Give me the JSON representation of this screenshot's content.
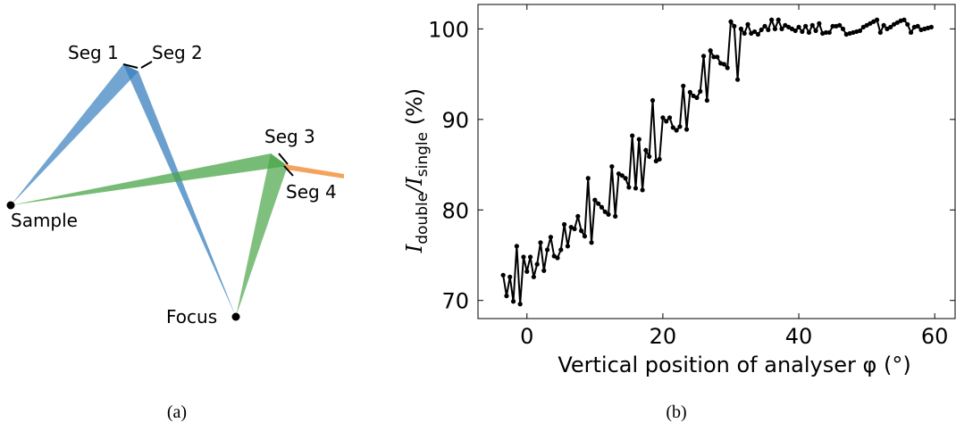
{
  "diagram": {
    "labels": [
      "Seg 1",
      "Seg 2",
      "Seg 3",
      "Seg 4",
      "Sample",
      "Focus"
    ],
    "caption": "(a)"
  },
  "chart_data": {
    "type": "line",
    "caption": "(b)",
    "xlabel": "Vertical position of analyser φ (°)",
    "ylabel": [
      {
        "text": "I"
      },
      {
        "text": "double",
        "sub": true
      },
      {
        "text": "/I"
      },
      {
        "text": "single",
        "sub": true
      },
      {
        "text": " (%)"
      }
    ],
    "color": "#000000",
    "x": [
      -3.5,
      -3,
      -2.5,
      -2,
      -1.5,
      -1,
      -0.5,
      0,
      0.5,
      1,
      1.5,
      2,
      2.5,
      3,
      3.5,
      4,
      4.5,
      5,
      5.5,
      6,
      6.5,
      7,
      7.5,
      8,
      8.5,
      9,
      9.5,
      10,
      10.5,
      11,
      11.5,
      12,
      12.5,
      13,
      13.5,
      14,
      14.5,
      15,
      15.5,
      16,
      16.5,
      17,
      17.5,
      18,
      18.5,
      19,
      19.5,
      20,
      20.5,
      21,
      21.5,
      22,
      22.5,
      23,
      23.5,
      24,
      24.5,
      25,
      25.5,
      26,
      26.5,
      27,
      27.5,
      28,
      28.5,
      29,
      29.5,
      30,
      30.5,
      31,
      31.5,
      32,
      32.5,
      33,
      33.5,
      34,
      34.5,
      35,
      35.5,
      36,
      36.5,
      37,
      37.5,
      38,
      38.5,
      39,
      39.5,
      40,
      40.5,
      41,
      41.5,
      42,
      42.5,
      43,
      43.5,
      44,
      44.5,
      45,
      45.5,
      46,
      46.5,
      47,
      47.5,
      48,
      48.5,
      49,
      49.5,
      50,
      50.5,
      51,
      51.5,
      52,
      52.5,
      53,
      53.5,
      54,
      54.5,
      55,
      55.5,
      56,
      56.5,
      57,
      57.5,
      58,
      58.5,
      59,
      59.5
    ],
    "values": [
      72.8,
      70.5,
      72.6,
      69.9,
      76.0,
      69.6,
      74.8,
      73.2,
      74.8,
      72.6,
      74.0,
      76.4,
      73.3,
      75.6,
      77.0,
      74.9,
      74.7,
      75.6,
      78.4,
      76.0,
      78.1,
      77.9,
      79.3,
      77.7,
      77.1,
      83.5,
      76.4,
      81.1,
      80.7,
      80.3,
      79.8,
      79.5,
      84.8,
      79.3,
      84.0,
      83.8,
      83.5,
      82.5,
      88.2,
      82.4,
      87.8,
      82.2,
      86.6,
      85.9,
      92.1,
      85.4,
      85.6,
      90.2,
      89.8,
      90.2,
      89.1,
      88.8,
      89.2,
      93.7,
      88.9,
      93.0,
      92.6,
      92.4,
      93.1,
      97.0,
      92.1,
      97.6,
      96.9,
      96.9,
      96.2,
      96.1,
      95.7,
      100.8,
      100.3,
      94.4,
      100.0,
      99.5,
      100.5,
      99.5,
      99.7,
      99.4,
      99.9,
      100.3,
      99.9,
      101.0,
      100.0,
      101.0,
      100.0,
      100.4,
      100.2,
      100.0,
      99.8,
      100.2,
      99.7,
      100.3,
      99.6,
      100.4,
      99.8,
      100.6,
      99.5,
      99.6,
      99.6,
      100.3,
      100.3,
      100.4,
      100.0,
      99.4,
      99.5,
      99.6,
      99.7,
      99.8,
      100.2,
      100.4,
      100.6,
      100.8,
      101.0,
      99.6,
      100.4,
      100.0,
      100.2,
      100.5,
      100.7,
      100.9,
      101.0,
      100.5,
      99.6,
      100.2,
      100.3,
      99.9,
      100.0,
      100.1,
      100.2
    ],
    "xlim": [
      -7.2,
      63
    ],
    "ylim": [
      68,
      102.7
    ],
    "xticks": [
      0,
      20,
      40,
      60
    ],
    "yticks": [
      70,
      80,
      90,
      100
    ]
  }
}
